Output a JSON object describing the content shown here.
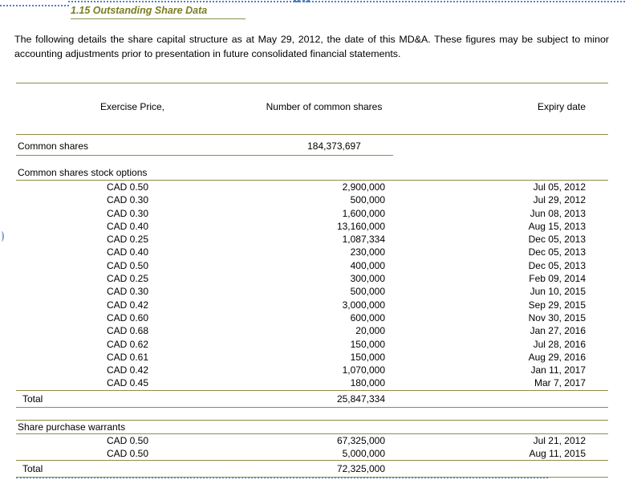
{
  "colors": {
    "rule_olive": "#8d8d49",
    "heading_olive": "#7c7c21",
    "boundary_blue": "#4f81bd"
  },
  "section": {
    "heading": "1.15 Outstanding Share Data"
  },
  "intro": {
    "text": "The following details the share capital structure as at May 29, 2012, the date of this MD&A. These figures may be subject to minor accounting adjustments prior to presentation in future consolidated financial statements."
  },
  "table": {
    "headers": {
      "exercise_price": "Exercise Price,",
      "shares": "Number of common shares",
      "expiry": "Expiry date"
    },
    "common_shares": {
      "label": "Common shares",
      "number": "184,373,697"
    },
    "stock_options": {
      "label": "Common shares stock options",
      "rows": [
        {
          "price": "CAD 0.50",
          "number": "2,900,000",
          "expiry": "Jul 05, 2012"
        },
        {
          "price": "CAD 0.30",
          "number": "500,000",
          "expiry": "Jul 29, 2012"
        },
        {
          "price": "CAD 0.30",
          "number": "1,600,000",
          "expiry": "Jun 08, 2013"
        },
        {
          "price": "CAD 0.40",
          "number": "13,160,000",
          "expiry": "Aug 15, 2013"
        },
        {
          "price": "CAD 0.25",
          "number": "1,087,334",
          "expiry": "Dec 05, 2013"
        },
        {
          "price": "CAD 0.40",
          "number": "230,000",
          "expiry": "Dec 05, 2013"
        },
        {
          "price": "CAD 0.50",
          "number": "400,000",
          "expiry": "Dec 05, 2013"
        },
        {
          "price": "CAD 0.25",
          "number": "300,000",
          "expiry": "Feb 09, 2014"
        },
        {
          "price": "CAD 0.30",
          "number": "500,000",
          "expiry": "Jun 10, 2015"
        },
        {
          "price": "CAD 0.42",
          "number": "3,000,000",
          "expiry": "Sep 29, 2015"
        },
        {
          "price": "CAD 0.60",
          "number": "600,000",
          "expiry": "Nov 30, 2015"
        },
        {
          "price": "CAD 0.68",
          "number": "20,000",
          "expiry": "Jan 27, 2016"
        },
        {
          "price": "CAD 0.62",
          "number": "150,000",
          "expiry": "Jul 28, 2016"
        },
        {
          "price": "CAD 0.61",
          "number": "150,000",
          "expiry": "Aug 29, 2016"
        },
        {
          "price": "CAD 0.42",
          "number": "1,070,000",
          "expiry": "Jan 11, 2017"
        },
        {
          "price": "CAD 0.45",
          "number": "180,000",
          "expiry": "Mar 7, 2017"
        }
      ],
      "total_label": "Total",
      "total_number": "25,847,334"
    },
    "warrants": {
      "label": "Share purchase warrants",
      "rows": [
        {
          "price": "CAD 0.50",
          "number": "67,325,000",
          "expiry": "Jul 21, 2012"
        },
        {
          "price": "CAD 0.50",
          "number": "5,000,000",
          "expiry": "Aug 11, 2015"
        }
      ],
      "total_label": "Total",
      "total_number": "72,325,000"
    }
  }
}
